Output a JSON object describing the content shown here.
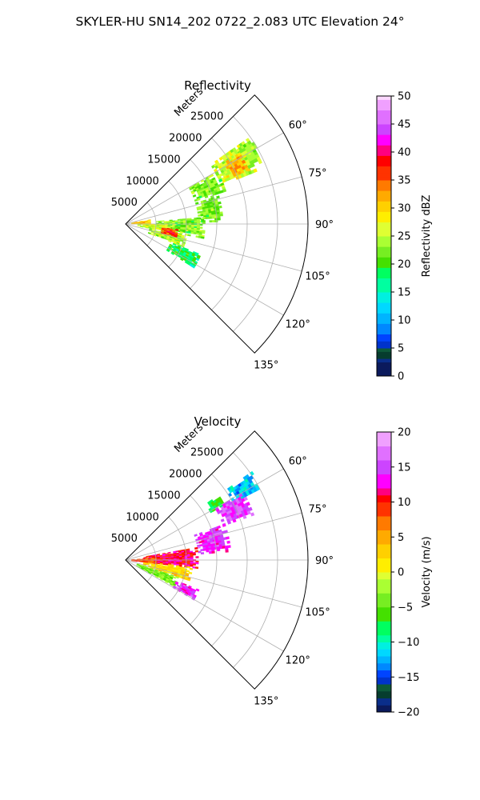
{
  "figure": {
    "title": "SKYLER-HU  SN14_202  0722_2.083 UTC Elevation 24°"
  },
  "chart_data": [
    {
      "type": "heatmap",
      "subtype": "polar-sector (PPI)",
      "title": "Reflectivity",
      "radial_axis_label": "Meters",
      "radial_ticks": [
        "5000",
        "10000",
        "15000",
        "20000",
        "25000"
      ],
      "radial_range": [
        0,
        30000
      ],
      "angle_ticks": [
        "60°",
        "75°",
        "90°",
        "105°",
        "120°",
        "135°"
      ],
      "angle_range_deg": [
        45,
        135
      ],
      "grid": true,
      "colorbar": {
        "label": "Reflectivity dBZ",
        "range": [
          0,
          50
        ],
        "ticks": [
          "0",
          "5",
          "10",
          "15",
          "20",
          "25",
          "30",
          "35",
          "40",
          "45",
          "50"
        ]
      },
      "echo_regions": [
        {
          "az": [
            55,
            68
          ],
          "r": [
            17000,
            23000
          ],
          "dbz": 26
        },
        {
          "az": [
            55,
            65
          ],
          "r": [
            21000,
            25000
          ],
          "dbz": 24
        },
        {
          "az": [
            60,
            72
          ],
          "r": [
            12000,
            17000
          ],
          "dbz": 22
        },
        {
          "az": [
            72,
            88
          ],
          "r": [
            12000,
            16000
          ],
          "dbz": 22
        },
        {
          "az": [
            85,
            100
          ],
          "r": [
            5000,
            13000
          ],
          "dbz": 22
        },
        {
          "az": [
            90,
            100
          ],
          "r": [
            2000,
            8000
          ],
          "dbz": 25
        },
        {
          "az": [
            100,
            112
          ],
          "r": [
            4000,
            10000
          ],
          "dbz": 24
        },
        {
          "az": [
            112,
            122
          ],
          "r": [
            8000,
            13000
          ],
          "dbz": 18
        },
        {
          "az": [
            80,
            90
          ],
          "r": [
            1000,
            4000
          ],
          "dbz": 30
        },
        {
          "az": [
            96,
            104
          ],
          "r": [
            6000,
            8500
          ],
          "dbz": 36
        },
        {
          "az": [
            58,
            66
          ],
          "r": [
            19000,
            22000
          ],
          "dbz": 31
        }
      ]
    },
    {
      "type": "heatmap",
      "subtype": "polar-sector (PPI)",
      "title": "Velocity",
      "radial_axis_label": "Meters",
      "radial_ticks": [
        "5000",
        "10000",
        "15000",
        "20000",
        "25000"
      ],
      "radial_range": [
        0,
        30000
      ],
      "angle_ticks": [
        "60°",
        "75°",
        "90°",
        "105°",
        "120°",
        "135°"
      ],
      "angle_range_deg": [
        45,
        135
      ],
      "grid": true,
      "colorbar": {
        "label": "Velocity (m/s)",
        "range": [
          -20,
          20
        ],
        "ticks": [
          "−20",
          "−15",
          "−10",
          "−5",
          "0",
          "5",
          "10",
          "15",
          "20"
        ]
      },
      "echo_regions": [
        {
          "az": [
            55,
            62
          ],
          "r": [
            20000,
            25000
          ],
          "vel": -12
        },
        {
          "az": [
            55,
            60
          ],
          "r": [
            16000,
            19000
          ],
          "vel": -7
        },
        {
          "az": [
            60,
            70
          ],
          "r": [
            17000,
            22000
          ],
          "vel": 15
        },
        {
          "az": [
            70,
            85
          ],
          "r": [
            12000,
            17000
          ],
          "vel": 14
        },
        {
          "az": [
            80,
            96
          ],
          "r": [
            3000,
            12000
          ],
          "vel": 11
        },
        {
          "az": [
            96,
            108
          ],
          "r": [
            3000,
            11000
          ],
          "vel": 2
        },
        {
          "az": [
            108,
            118
          ],
          "r": [
            2000,
            9000
          ],
          "vel": -4
        },
        {
          "az": [
            112,
            120
          ],
          "r": [
            9000,
            13000
          ],
          "vel": 14
        },
        {
          "az": [
            86,
            96
          ],
          "r": [
            1000,
            5000
          ],
          "vel": 8
        }
      ]
    }
  ]
}
